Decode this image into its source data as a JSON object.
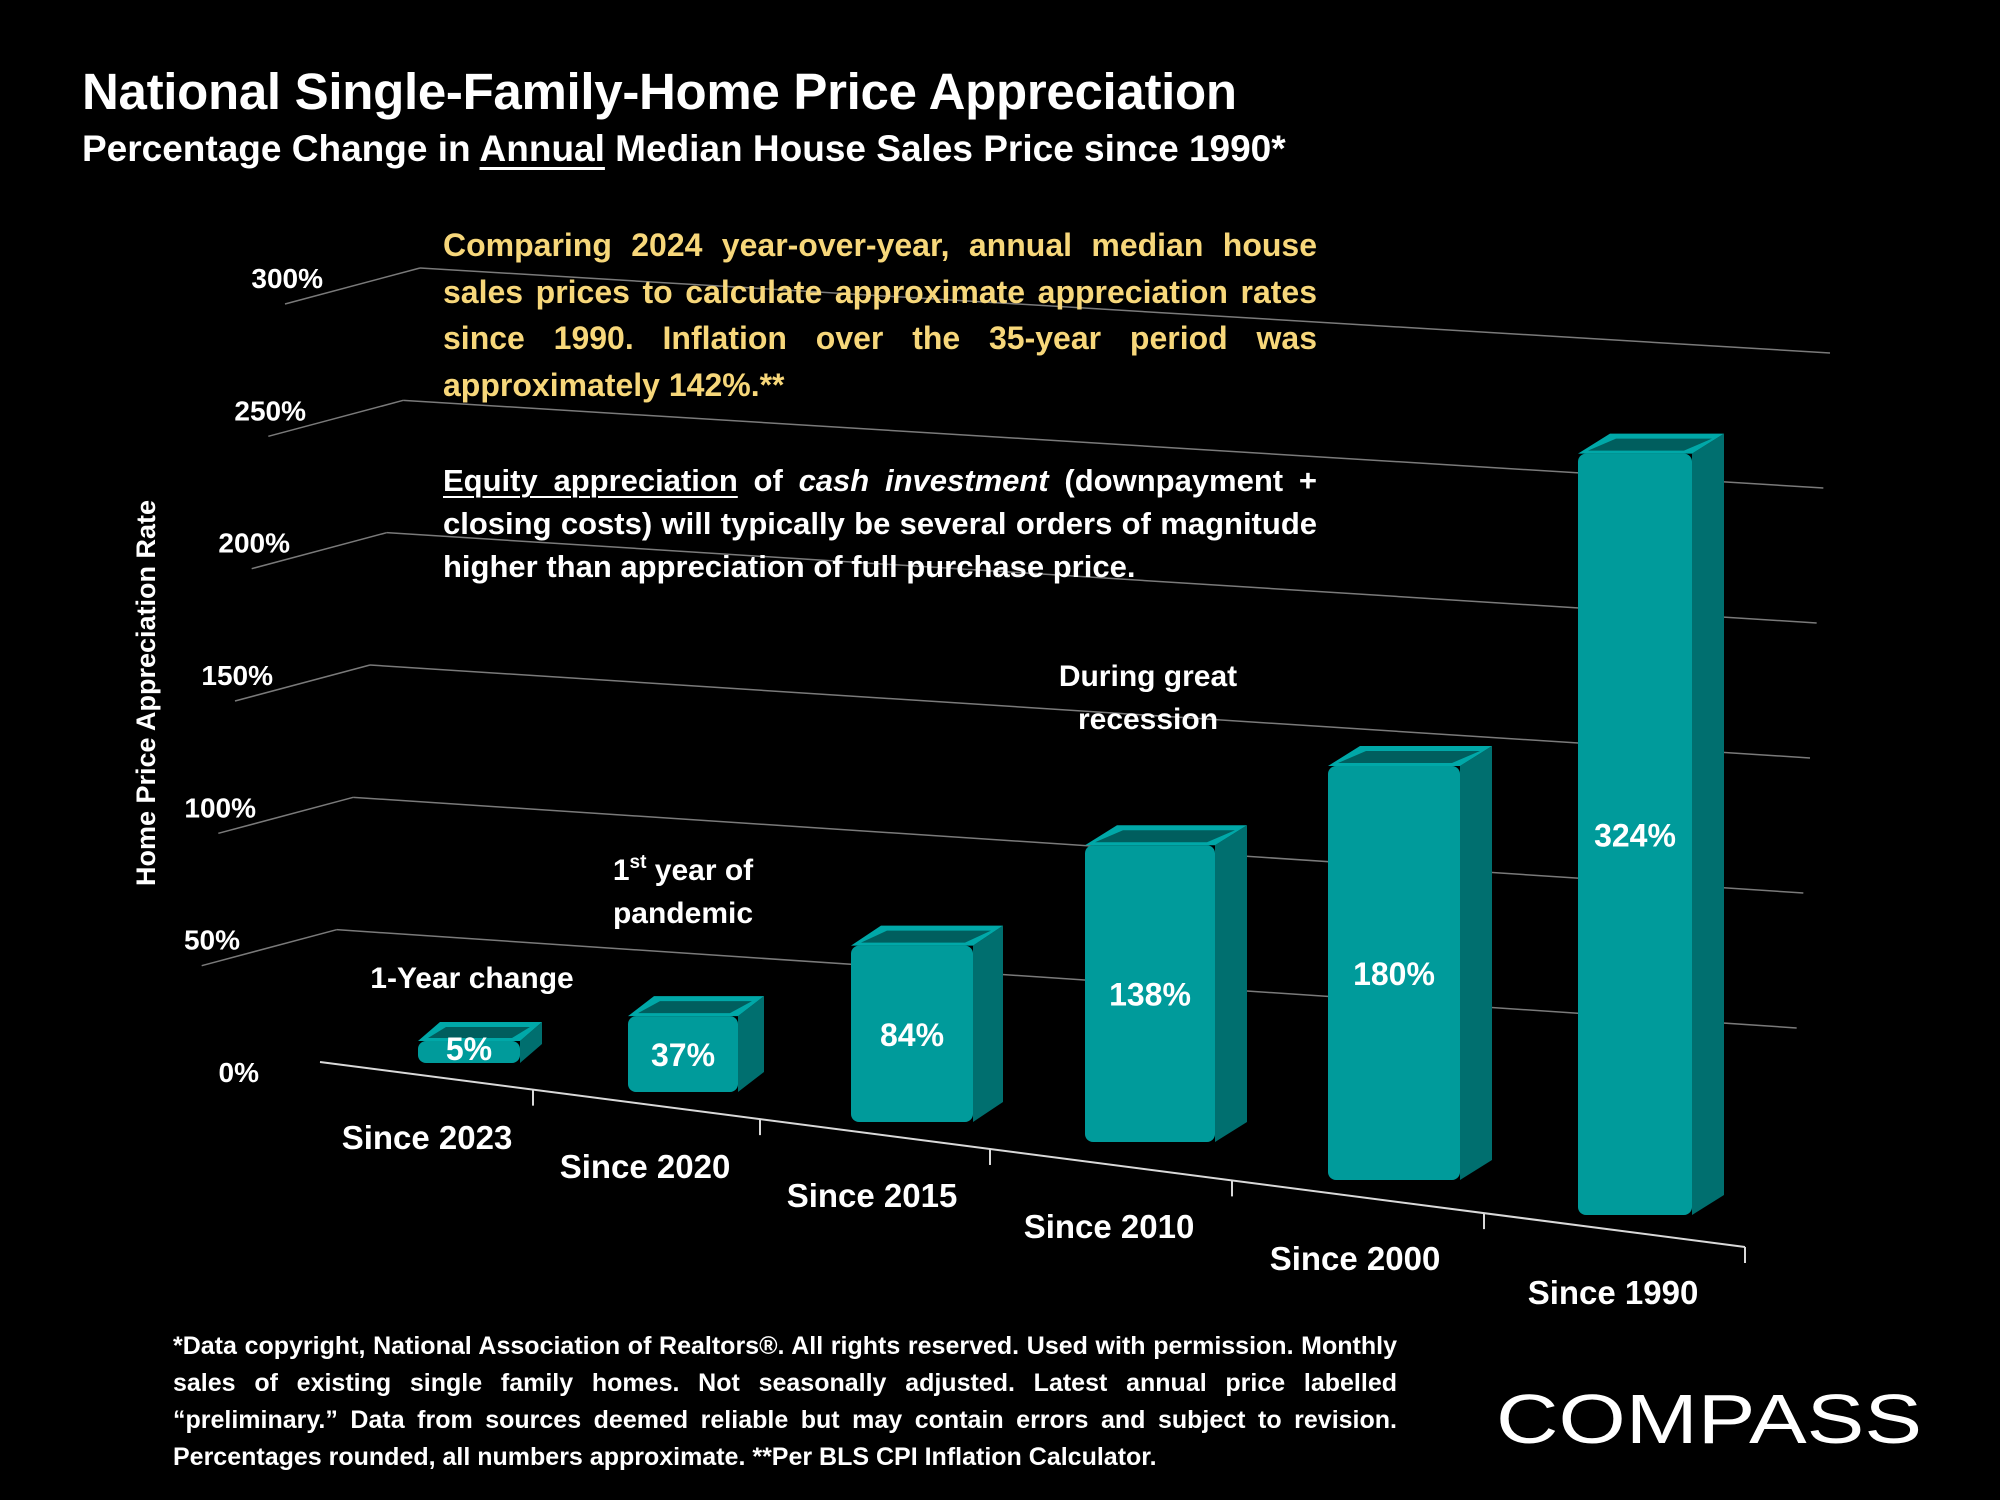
{
  "header": {
    "title": "National Single-Family-Home Price Appreciation",
    "subtitle_pre": "Percentage Change in ",
    "subtitle_underlined": "Annual",
    "subtitle_post": " Median House Sales Price since 1990*"
  },
  "notes": {
    "intro": "Comparing 2024 year-over-year, annual median house sales prices to calculate approximate appreciation rates since 1990. Inflation over the 35-year period was approximately 142%.**",
    "equity_underlined": "Equity appreciation",
    "equity_of": " of ",
    "equity_italic": "cash investment",
    "equity_rest": " (downpayment + closing costs) will typically be several orders of magnitude higher than appreciation of full purchase price."
  },
  "chart_data": {
    "type": "bar",
    "title": "National Single-Family-Home Price Appreciation",
    "ylabel": "Home Price Appreciation Rate",
    "xlabel": "",
    "ylim": [
      0,
      300
    ],
    "yticks": [
      "0%",
      "50%",
      "100%",
      "150%",
      "200%",
      "250%",
      "300%"
    ],
    "categories": [
      "Since 2023",
      "Since 2020",
      "Since 2015",
      "Since 2010",
      "Since 2000",
      "Since 1990"
    ],
    "values": [
      5,
      37,
      84,
      138,
      180,
      324
    ],
    "value_labels": [
      "5%",
      "37%",
      "84%",
      "138%",
      "180%",
      "324%"
    ],
    "annotations": [
      {
        "category": "Since 2023",
        "lines": [
          "1-Year change"
        ]
      },
      {
        "category": "Since 2020",
        "line1_main": "1",
        "line1_sup": "st",
        "line1_rest": " year of",
        "line2": "pandemic"
      },
      {
        "category": "Since 2010",
        "lines": [
          "During great",
          "recession"
        ]
      }
    ],
    "bar_color": "#009b9b",
    "grid": true
  },
  "footnote": "*Data copyright, National Association of Realtors®. All rights reserved. Used with permission. Monthly sales of existing single family homes. Not seasonally adjusted. Latest annual price labelled “preliminary.” Data from sources deemed reliable but may contain errors and subject to revision. Percentages rounded, all numbers  approximate. **Per BLS CPI Inflation Calculator.",
  "brand": {
    "logo_text": "COMPASS"
  }
}
